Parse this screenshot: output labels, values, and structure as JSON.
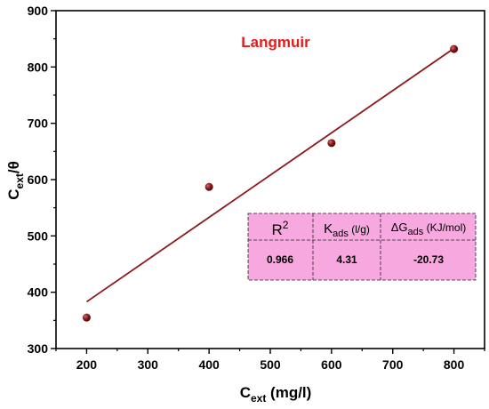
{
  "chart_data": {
    "type": "scatter",
    "title": "Langmuir",
    "xlabel": {
      "main": "C",
      "sub": "ext",
      "tail": " (mg/l)"
    },
    "ylabel": {
      "main": "C",
      "sub": "ext",
      "tail": "/θ"
    },
    "xlim": [
      150,
      850
    ],
    "ylim": [
      300,
      900
    ],
    "xticks": [
      200,
      300,
      400,
      500,
      600,
      700,
      800
    ],
    "yticks": [
      300,
      400,
      500,
      600,
      700,
      800,
      900
    ],
    "grid": false,
    "series": [
      {
        "type": "scatter",
        "x": [
          200,
          400,
          600,
          800
        ],
        "y": [
          355,
          587,
          665,
          832
        ]
      },
      {
        "type": "line",
        "x": [
          200,
          800
        ],
        "y": [
          383,
          833
        ]
      }
    ],
    "colors": {
      "points": "#8b1a1a",
      "fit_line": "#8b1a1a",
      "title": "#e31b1b",
      "table_bg": "#f7a8df"
    },
    "table": {
      "headers": [
        {
          "main": "R",
          "sup": "2",
          "sub": "",
          "unit": ""
        },
        {
          "main": "K",
          "sup": "",
          "sub": "ads",
          "unit": " (l/g)"
        },
        {
          "main": "ΔG",
          "sup": "",
          "sub": "ads",
          "unit": " (KJ/mol)"
        }
      ],
      "values": [
        "0.966",
        "4.31",
        "-20.73"
      ]
    }
  }
}
